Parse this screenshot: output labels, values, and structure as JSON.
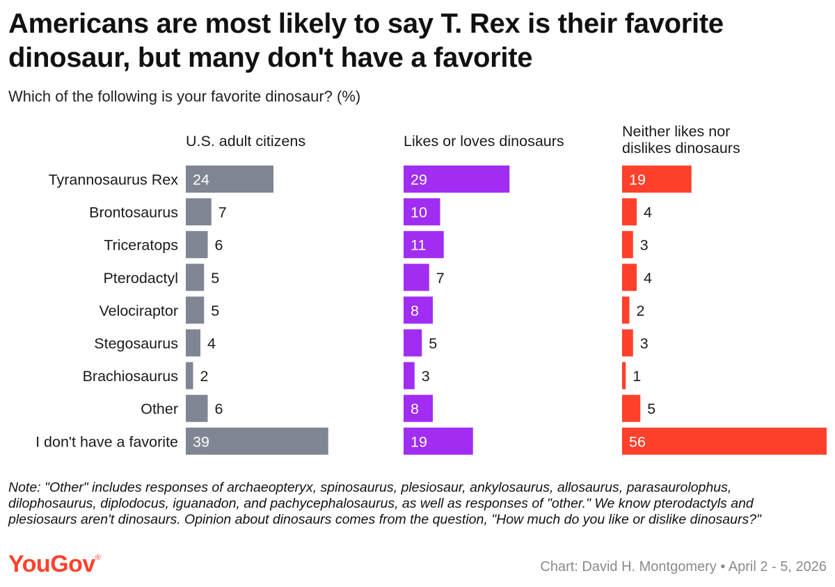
{
  "title": "Americans are most likely to say T. Rex is their favorite dinosaur, but many don't have a favorite",
  "subtitle": "Which of the following is your favorite dinosaur? (%)",
  "colors": {
    "gray": "#7f8592",
    "purple": "#a12df3",
    "red": "#ff412c"
  },
  "chart_data": {
    "type": "bar",
    "orientation": "horizontal",
    "categories": [
      "Tyrannosaurus Rex",
      "Brontosaurus",
      "Triceratops",
      "Pterodactyl",
      "Velociraptor",
      "Stegosaurus",
      "Brachiosaurus",
      "Other",
      "I don't have a favorite"
    ],
    "series": [
      {
        "name": "U.S. adult citizens",
        "color": "#7f8592",
        "values": [
          24,
          7,
          6,
          5,
          5,
          4,
          2,
          6,
          39
        ]
      },
      {
        "name": "Likes or loves dinosaurs",
        "color": "#a12df3",
        "values": [
          29,
          10,
          11,
          7,
          8,
          5,
          3,
          8,
          19
        ]
      },
      {
        "name": "Neither likes nor dislikes dinosaurs",
        "color": "#ff412c",
        "values": [
          19,
          4,
          3,
          4,
          2,
          3,
          1,
          5,
          56
        ]
      }
    ],
    "xlim": [
      0,
      56
    ],
    "grid": false,
    "legend": "none"
  },
  "note": "Note: \"Other\" includes responses of archaeopteryx, spinosaurus, plesiosaur, ankylosaurus, allosaurus, parasaurolophus, dilophosaurus, diplodocus, iguanadon, and pachycephalosaurus, as well as responses of \"other.\" We know pterodactyls and plesiosaurs aren't dinosaurs. Opinion about dinosaurs comes from the question, \"How much do you like or dislike dinosaurs?\"",
  "logo": "YouGov",
  "credit": "Chart: David H. Montgomery • April 2 - 5, 2026"
}
